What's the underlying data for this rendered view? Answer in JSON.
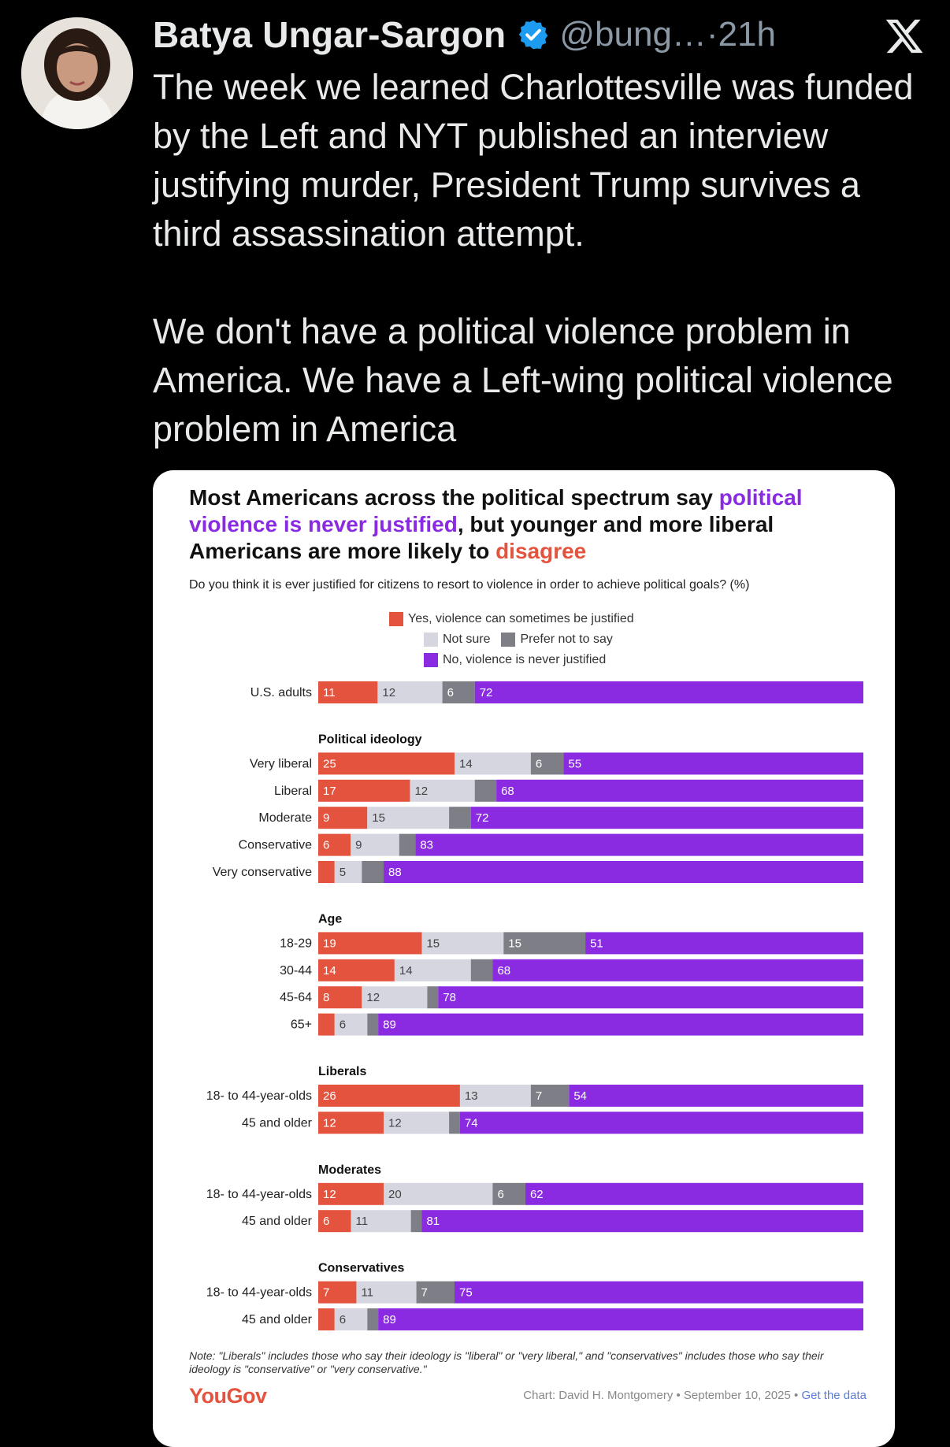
{
  "tweet": {
    "author": "Batya Ungar-Sargon",
    "handle": "@bung…",
    "separator": " · ",
    "time": "21h",
    "paragraph1": "The week we learned Charlottesville was funded by the Left and NYT published an interview justifying murder, President Trump survives a third assassination attempt.",
    "paragraph2": "We don't have a political violence problem in America. We have a Left-wing political violence problem in America"
  },
  "colors": {
    "yes": "#e4533d",
    "not_sure": "#d5d6e0",
    "prefer_not": "#7e7f86",
    "no": "#8a2be2",
    "verified": "#1d9bf0"
  },
  "chart_data": {
    "type": "stacked-bar-horizontal",
    "title_part1": "Most Americans across the political spectrum say",
    "title_highlight1": "political violence is never justified",
    "title_part2": ", but younger and more liberal Americans are more likely to",
    "title_highlight2": "disagree",
    "subtitle": "Do you think it is ever justified for citizens to resort to violence in order to achieve political goals? (%)",
    "legend": {
      "yes": "Yes, violence can sometimes be justified",
      "not_sure": "Not sure",
      "prefer_not": "Prefer not to say",
      "no": "No, violence is never justified"
    },
    "series_order": [
      "yes",
      "not_sure",
      "prefer_not",
      "no"
    ],
    "groups": [
      {
        "heading": "",
        "rows": [
          {
            "label": "U.S. adults",
            "values": [
              11,
              12,
              6,
              72
            ]
          }
        ]
      },
      {
        "heading": "Political ideology",
        "rows": [
          {
            "label": "Very liberal",
            "values": [
              25,
              14,
              6,
              55
            ]
          },
          {
            "label": "Liberal",
            "values": [
              17,
              12,
              4,
              68
            ]
          },
          {
            "label": "Moderate",
            "values": [
              9,
              15,
              4,
              72
            ]
          },
          {
            "label": "Conservative",
            "values": [
              6,
              9,
              3,
              83
            ]
          },
          {
            "label": "Very conservative",
            "values": [
              3,
              5,
              4,
              88
            ]
          }
        ]
      },
      {
        "heading": "Age",
        "rows": [
          {
            "label": "18-29",
            "values": [
              19,
              15,
              15,
              51
            ]
          },
          {
            "label": "30-44",
            "values": [
              14,
              14,
              4,
              68
            ]
          },
          {
            "label": "45-64",
            "values": [
              8,
              12,
              2,
              78
            ]
          },
          {
            "label": "65+",
            "values": [
              3,
              6,
              2,
              89
            ]
          }
        ]
      },
      {
        "heading": "Liberals",
        "rows": [
          {
            "label": "18- to 44-year-olds",
            "values": [
              26,
              13,
              7,
              54
            ]
          },
          {
            "label": "45 and older",
            "values": [
              12,
              12,
              2,
              74
            ]
          }
        ]
      },
      {
        "heading": "Moderates",
        "rows": [
          {
            "label": "18- to 44-year-olds",
            "values": [
              12,
              20,
              6,
              62
            ]
          },
          {
            "label": "45 and older",
            "values": [
              6,
              11,
              2,
              81
            ]
          }
        ]
      },
      {
        "heading": "Conservatives",
        "rows": [
          {
            "label": "18- to 44-year-olds",
            "values": [
              7,
              11,
              7,
              75
            ]
          },
          {
            "label": "45 and older",
            "values": [
              3,
              6,
              2,
              89
            ]
          }
        ]
      }
    ],
    "note": "Note: \"Liberals\" includes those who say their ideology is \"liberal\" or \"very liberal,\" and \"conservatives\" includes those who say their ideology is \"conservative\" or \"very conservative.\"",
    "source_logo": "YouGov",
    "credit": "Chart: David H. Montgomery • September 10, 2025 • ",
    "credit_link": "Get the data"
  }
}
